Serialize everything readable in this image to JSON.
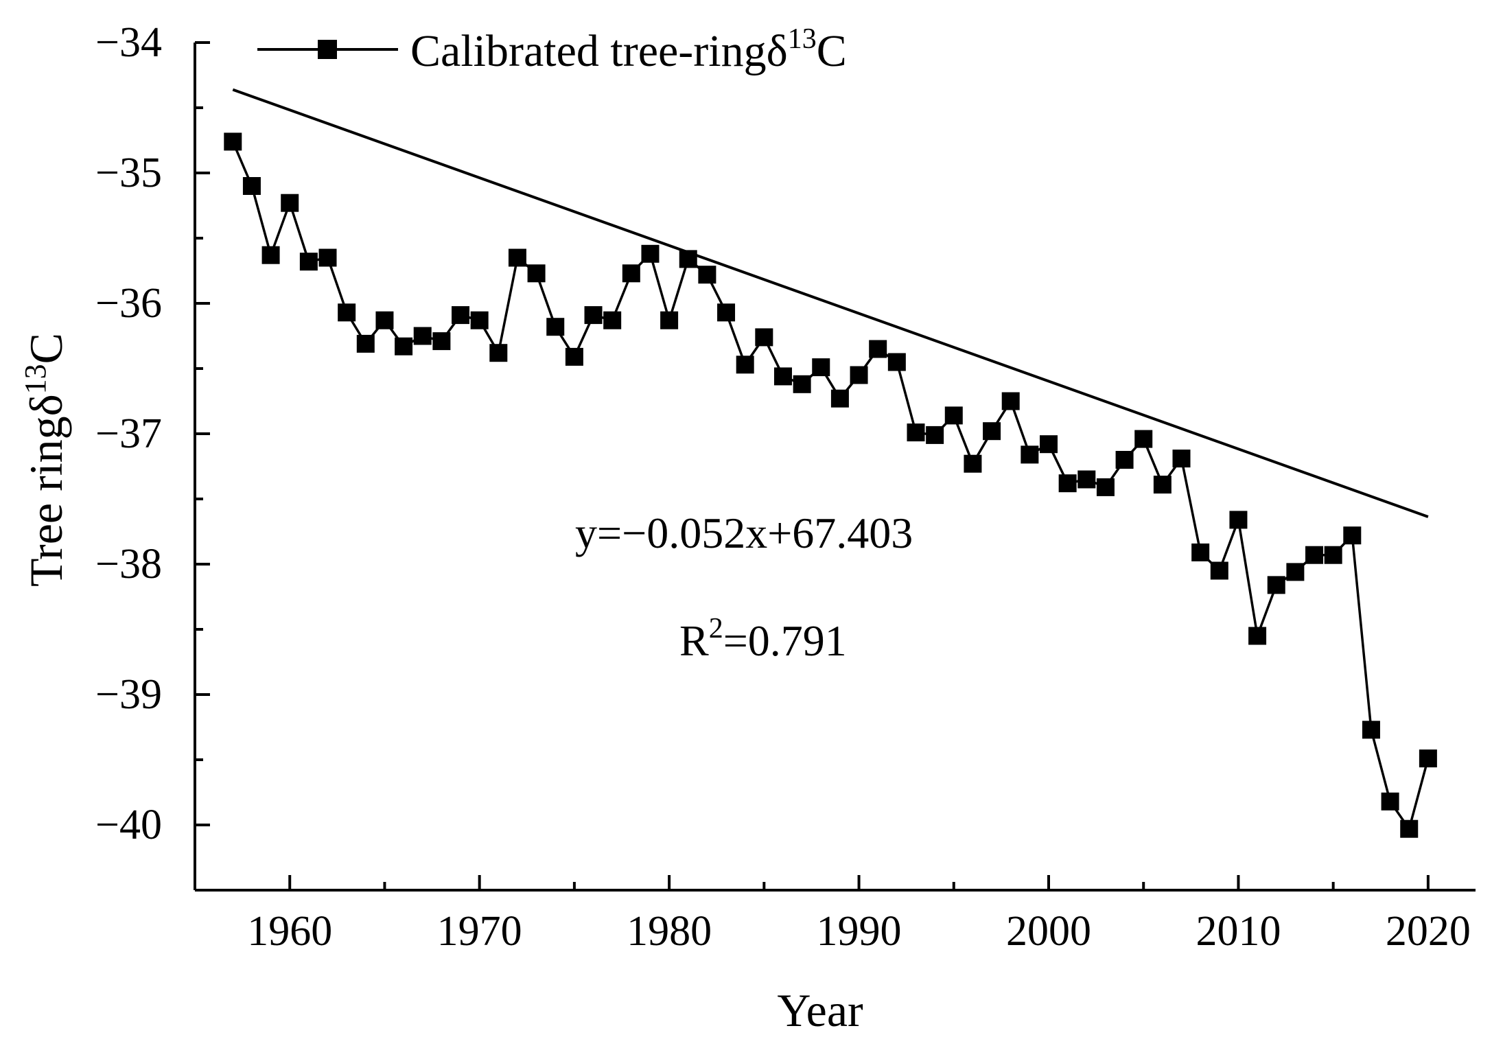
{
  "chart_data": {
    "type": "line",
    "title": "",
    "xlabel": "Year",
    "ylabel": {
      "prefix": "Tree ring",
      "delta": "δ",
      "superscript": "13",
      "suffix": "C"
    },
    "xlim": [
      1955,
      2022.5
    ],
    "ylim": [
      -40.5,
      -34
    ],
    "x_ticks": [
      1960,
      1970,
      1980,
      1990,
      2000,
      2010,
      2020
    ],
    "x_tick_labels": [
      "1960",
      "1970",
      "1980",
      "1990",
      "2000",
      "2010",
      "2020"
    ],
    "y_ticks": [
      -34,
      -35,
      -36,
      -37,
      -38,
      -39,
      -40
    ],
    "y_tick_labels": [
      "−34",
      "−35",
      "−36",
      "−37",
      "−38",
      "−39",
      "−40"
    ],
    "grid": false,
    "legend": {
      "placement": "top-left",
      "prefix": "Calibrated tree-ring",
      "delta": "δ",
      "superscript": "13",
      "suffix": "C"
    },
    "series": [
      {
        "name": "Calibrated tree-ringδ13C",
        "color": "#000000",
        "marker": "square",
        "x": [
          1957,
          1958,
          1959,
          1960,
          1961,
          1962,
          1963,
          1964,
          1965,
          1966,
          1967,
          1968,
          1969,
          1970,
          1971,
          1972,
          1973,
          1974,
          1975,
          1976,
          1977,
          1978,
          1979,
          1980,
          1981,
          1982,
          1983,
          1984,
          1985,
          1986,
          1987,
          1988,
          1989,
          1990,
          1991,
          1992,
          1993,
          1994,
          1995,
          1996,
          1997,
          1998,
          1999,
          2000,
          2001,
          2002,
          2003,
          2004,
          2005,
          2006,
          2007,
          2008,
          2009,
          2010,
          2011,
          2012,
          2013,
          2014,
          2015,
          2016,
          2017,
          2018,
          2019,
          2020
        ],
        "y": [
          -34.76,
          -35.1,
          -35.63,
          -35.23,
          -35.68,
          -35.65,
          -36.07,
          -36.31,
          -36.13,
          -36.33,
          -36.25,
          -36.29,
          -36.09,
          -36.13,
          -36.38,
          -35.65,
          -35.77,
          -36.18,
          -36.41,
          -36.09,
          -36.13,
          -35.77,
          -35.62,
          -36.13,
          -35.66,
          -35.78,
          -36.07,
          -36.47,
          -36.26,
          -36.56,
          -36.62,
          -36.49,
          -36.73,
          -36.55,
          -36.35,
          -36.45,
          -36.99,
          -37.01,
          -36.86,
          -37.23,
          -36.98,
          -36.75,
          -37.16,
          -37.08,
          -37.38,
          -37.35,
          -37.41,
          -37.2,
          -37.04,
          -37.39,
          -37.19,
          -37.91,
          -38.05,
          -37.66,
          -38.55,
          -38.16,
          -38.06,
          -37.93,
          -37.93,
          -37.78,
          -39.27,
          -39.82,
          -40.03,
          -39.49
        ]
      }
    ],
    "trendline": {
      "slope": -0.052,
      "intercept": 67.403,
      "x_range": [
        1957,
        2020
      ]
    },
    "annotations": {
      "equation": "y=−0.052x+67.403",
      "r2_base": "R",
      "r2_sup": "2",
      "r2_value": "=0.791"
    }
  }
}
